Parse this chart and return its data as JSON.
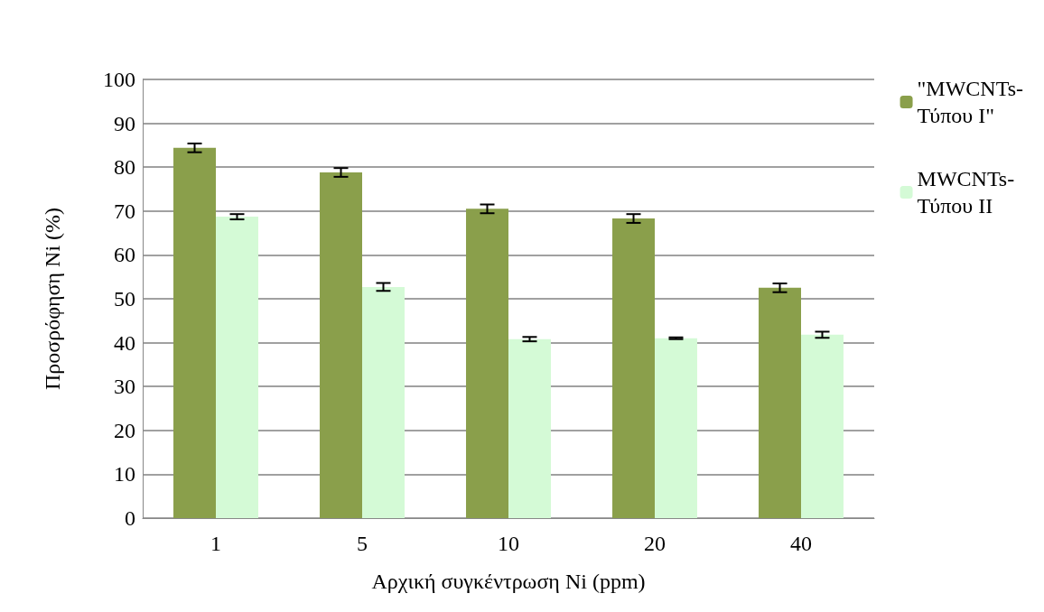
{
  "chart_data": {
    "type": "bar",
    "xlabel": "Αρχική συγκέντρωση Ni (ppm)",
    "ylabel": "Προσρόφηση Ni (%)",
    "categories": [
      "1",
      "5",
      "10",
      "20",
      "40"
    ],
    "series": [
      {
        "name": "\"MWCNTs-Τύπου I\"",
        "color": "#8a9f4b",
        "values": [
          84.4,
          78.8,
          70.5,
          68.3,
          52.5
        ],
        "errors": [
          1,
          1,
          1,
          1,
          1
        ]
      },
      {
        "name": "MWCNTs-Τύπου II",
        "color": "#d4fad6",
        "values": [
          68.7,
          52.7,
          40.8,
          41.0,
          41.8
        ],
        "errors": [
          0.6,
          0.9,
          0.5,
          0.2,
          0.7
        ]
      }
    ],
    "ylim": [
      0,
      100
    ],
    "yticks": [
      0,
      10,
      20,
      30,
      40,
      50,
      60,
      70,
      80,
      90,
      100
    ],
    "grid": "y",
    "legend": "top right"
  }
}
